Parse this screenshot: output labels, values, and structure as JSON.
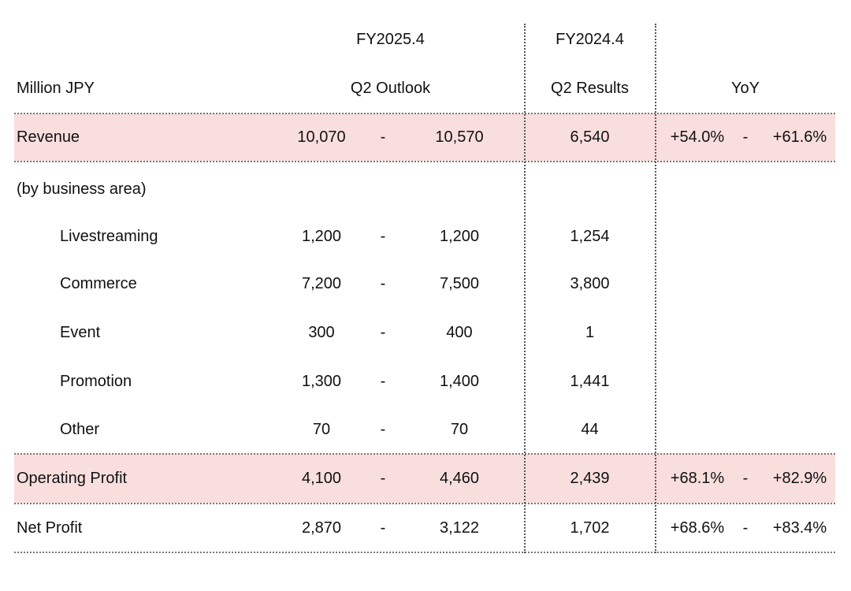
{
  "header": {
    "fy_current": "FY2025.4",
    "fy_prior": "FY2024.4",
    "unit": "Million JPY",
    "outlook": "Q2 Outlook",
    "results": "Q2 Results",
    "yoy": "YoY"
  },
  "revenue": {
    "label": "Revenue",
    "low": "10,070",
    "dash": "-",
    "high": "10,570",
    "prior": "6,540",
    "yoy_low": "+54.0%",
    "yoy_dash": "-",
    "yoy_high": "+61.6%"
  },
  "business_area_label": "(by business area)",
  "segments": [
    {
      "label": "Livestreaming",
      "low": "1,200",
      "dash": "-",
      "high": "1,200",
      "prior": "1,254"
    },
    {
      "label": "Commerce",
      "low": "7,200",
      "dash": "-",
      "high": "7,500",
      "prior": "3,800"
    },
    {
      "label": "Event",
      "low": "300",
      "dash": "-",
      "high": "400",
      "prior": "1"
    },
    {
      "label": "Promotion",
      "low": "1,300",
      "dash": "-",
      "high": "1,400",
      "prior": "1,441"
    },
    {
      "label": "Other",
      "low": "70",
      "dash": "-",
      "high": "70",
      "prior": "44"
    }
  ],
  "operating_profit": {
    "label": "Operating Profit",
    "low": "4,100",
    "dash": "-",
    "high": "4,460",
    "prior": "2,439",
    "yoy_low": "+68.1%",
    "yoy_dash": "-",
    "yoy_high": "+82.9%"
  },
  "net_profit": {
    "label": "Net Profit",
    "low": "2,870",
    "dash": "-",
    "high": "3,122",
    "prior": "1,702",
    "yoy_low": "+68.6%",
    "yoy_dash": "-",
    "yoy_high": "+83.4%"
  },
  "colors": {
    "highlight_row": "#f9dede",
    "text": "#111111",
    "rule": "#777777"
  }
}
